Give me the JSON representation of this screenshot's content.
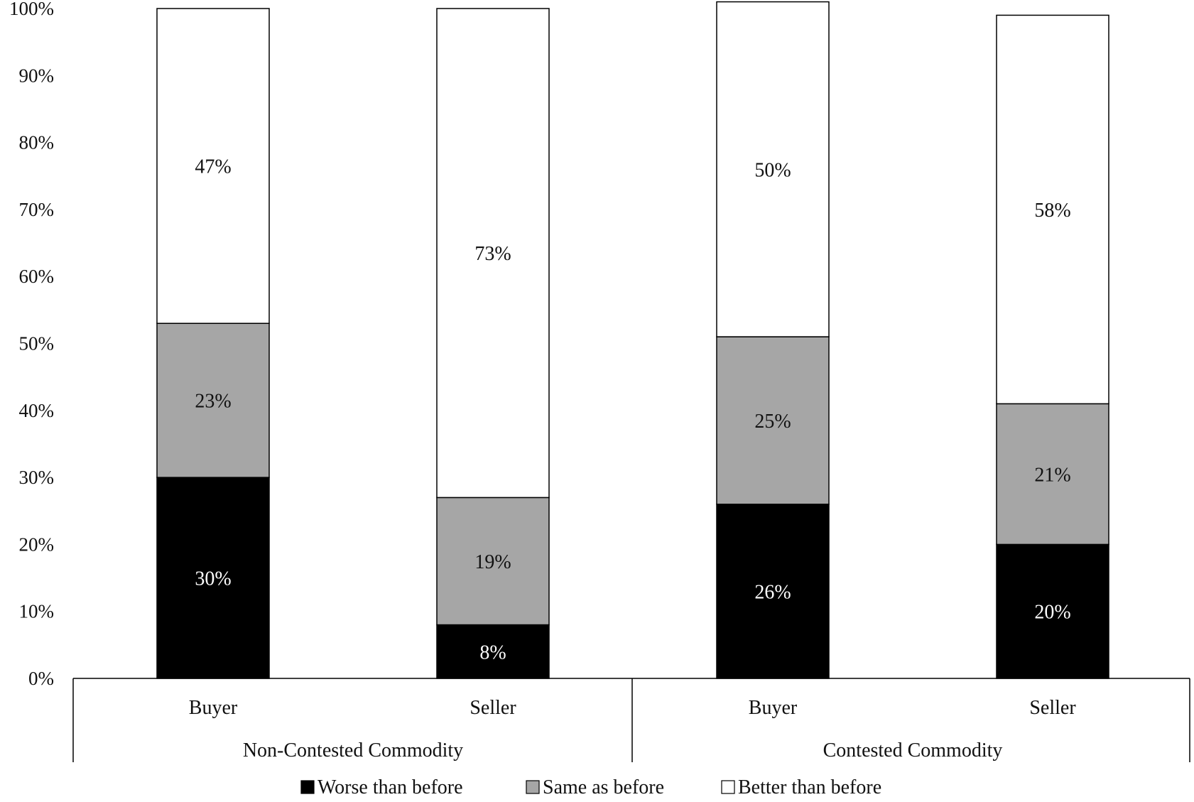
{
  "chart_data": {
    "type": "bar",
    "stacked": true,
    "groups": [
      "Non-Contested Commodity",
      "Contested Commodity"
    ],
    "categories": [
      "Buyer",
      "Seller",
      "Buyer",
      "Seller"
    ],
    "category_group": [
      0,
      0,
      1,
      1
    ],
    "ylim": [
      0,
      100
    ],
    "yticks": [
      0,
      10,
      20,
      30,
      40,
      50,
      60,
      70,
      80,
      90,
      100
    ],
    "ytick_labels": [
      "0%",
      "10%",
      "20%",
      "30%",
      "40%",
      "50%",
      "60%",
      "70%",
      "80%",
      "90%",
      "100%"
    ],
    "series": [
      {
        "name": "Worse than before",
        "color": "#000000",
        "label_color": "#ffffff",
        "values": [
          30,
          8,
          26,
          20
        ],
        "labels": [
          "30%",
          "8%",
          "26%",
          "20%"
        ]
      },
      {
        "name": "Same as before",
        "color": "#a6a6a6",
        "label_color": "#111111",
        "values": [
          23,
          19,
          25,
          21
        ],
        "labels": [
          "23%",
          "19%",
          "25%",
          "21%"
        ]
      },
      {
        "name": "Better than before",
        "color": "#ffffff",
        "label_color": "#111111",
        "values": [
          47,
          73,
          50,
          58
        ],
        "labels": [
          "47%",
          "73%",
          "50%",
          "58%"
        ]
      }
    ],
    "legend_position": "bottom",
    "grid": false,
    "title": "",
    "xlabel": "",
    "ylabel": ""
  }
}
